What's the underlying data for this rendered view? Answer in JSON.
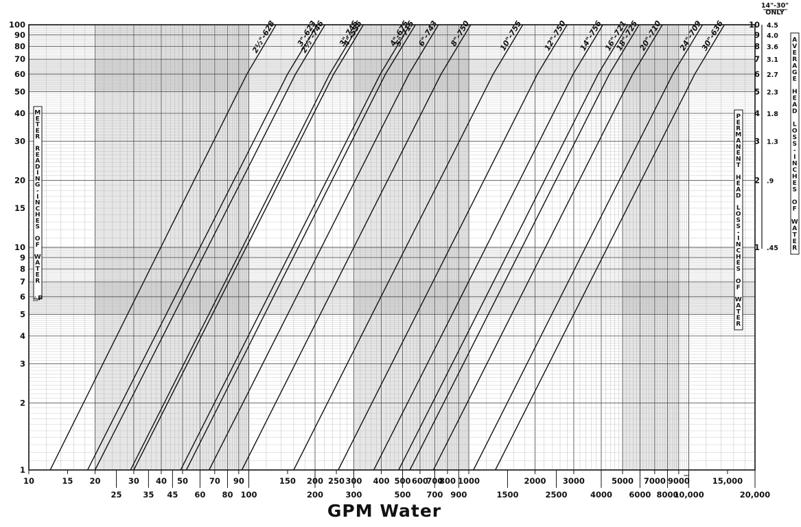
{
  "chart_data": {
    "type": "line",
    "title": "",
    "xlabel": "GPM Water",
    "ylabel_left": "METER READING-INCHES OF WATER",
    "ylabel_left_symbol": "△P",
    "ylabel_right_inner": "PERMANENT HEAD LOSS-INCHES OF WATER",
    "ylabel_right_outer": "AVERAGE HEAD LOSS-INCHES OF WATER",
    "outer_header": "14\"-30\" ONLY",
    "xscale": "log",
    "yscale": "log",
    "xlim": [
      10,
      20000
    ],
    "ylim": [
      1,
      100
    ],
    "grid": true,
    "x_ticks_top_row": [
      "10",
      "15",
      "20",
      "30",
      "40",
      "50",
      "70",
      "90",
      "150",
      "200",
      "250",
      "300",
      "400",
      "500",
      "600",
      "700",
      "800",
      "1000",
      "2000",
      "3000",
      "5000",
      "7000",
      "9000",
      "15,000"
    ],
    "x_ticks_bottom_row": [
      "25",
      "35",
      "45",
      "60",
      "80",
      "100",
      "200",
      "300",
      "500",
      "700",
      "900",
      "1500",
      "2500",
      "4000",
      "6000",
      "8000",
      "10,000",
      "20,000"
    ],
    "y_ticks_left": [
      "1",
      "2",
      "3",
      "4",
      "5",
      "6",
      "7",
      "8",
      "9",
      "10",
      "15",
      "20",
      "30",
      "40",
      "50",
      "60",
      "70",
      "80",
      "90",
      "100"
    ],
    "right_scale_inner": [
      "1",
      "2",
      "3",
      "4",
      "5",
      "6",
      "7",
      "8",
      "9",
      "10"
    ],
    "right_scale_outer": [
      ".45",
      ".9",
      "1.3",
      "1.8",
      "2.3",
      "2.7",
      "3.1",
      "3.6",
      "4.0",
      "4.5"
    ],
    "series": [
      {
        "name": "2½\"-628",
        "points": [
          [
            12.5,
            1
          ],
          [
            98,
            60
          ],
          [
            133,
            100
          ]
        ]
      },
      {
        "name": "3\"-623",
        "points": [
          [
            18.5,
            1
          ],
          [
            150,
            60
          ],
          [
            205,
            100
          ]
        ]
      },
      {
        "name": "2½\"-746",
        "points": [
          [
            20,
            1
          ],
          [
            163,
            60
          ],
          [
            222,
            100
          ]
        ]
      },
      {
        "name": "3\"-745",
        "points": [
          [
            29,
            1
          ],
          [
            233,
            60
          ],
          [
            318,
            100
          ]
        ]
      },
      {
        "name": "4\"-555",
        "points": [
          [
            30,
            1
          ],
          [
            243,
            60
          ],
          [
            332,
            100
          ]
        ]
      },
      {
        "name": "4\"-675",
        "points": [
          [
            49,
            1
          ],
          [
            396,
            60
          ],
          [
            540,
            100
          ]
        ]
      },
      {
        "name": "5\"-715",
        "points": [
          [
            52,
            1
          ],
          [
            418,
            60
          ],
          [
            572,
            100
          ]
        ]
      },
      {
        "name": "6\"-743",
        "points": [
          [
            66,
            1
          ],
          [
            534,
            60
          ],
          [
            728,
            100
          ]
        ]
      },
      {
        "name": "8\"-750",
        "points": [
          [
            93,
            1
          ],
          [
            748,
            60
          ],
          [
            1020,
            100
          ]
        ]
      },
      {
        "name": "10\"-755",
        "points": [
          [
            160,
            1
          ],
          [
            1290,
            60
          ],
          [
            1760,
            100
          ]
        ]
      },
      {
        "name": "12\"-750",
        "points": [
          [
            255,
            1
          ],
          [
            2050,
            60
          ],
          [
            2800,
            100
          ]
        ]
      },
      {
        "name": "14\"-756",
        "points": [
          [
            370,
            1
          ],
          [
            2980,
            60
          ],
          [
            4070,
            100
          ]
        ]
      },
      {
        "name": "16\"-721",
        "points": [
          [
            480,
            1
          ],
          [
            3870,
            60
          ],
          [
            5280,
            100
          ]
        ]
      },
      {
        "name": "18\"-725",
        "points": [
          [
            540,
            1
          ],
          [
            4350,
            60
          ],
          [
            5940,
            100
          ]
        ]
      },
      {
        "name": "20\"-710",
        "points": [
          [
            690,
            1
          ],
          [
            5560,
            60
          ],
          [
            7590,
            100
          ]
        ]
      },
      {
        "name": "24\"-709",
        "points": [
          [
            1050,
            1
          ],
          [
            8460,
            60
          ],
          [
            11550,
            100
          ]
        ]
      },
      {
        "name": "30\"-636",
        "points": [
          [
            1320,
            1
          ],
          [
            10640,
            60
          ],
          [
            14520,
            100
          ]
        ]
      }
    ]
  }
}
